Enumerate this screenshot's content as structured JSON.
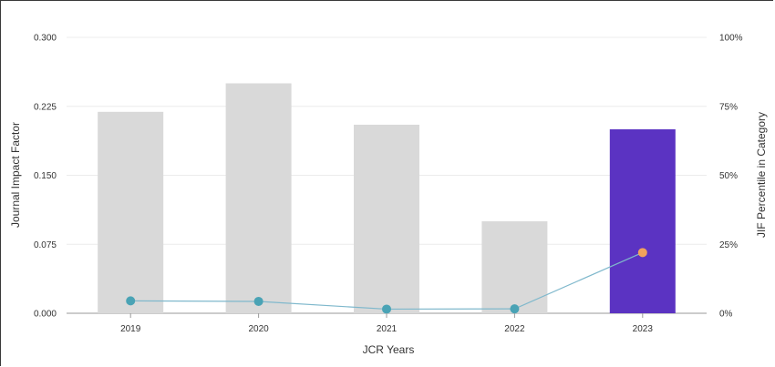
{
  "chart_data": {
    "type": "bar",
    "categories": [
      "2019",
      "2020",
      "2021",
      "2022",
      "2023"
    ],
    "series": [
      {
        "kind": "bar",
        "axis": "left",
        "values": [
          0.219,
          0.25,
          0.205,
          0.1,
          0.2
        ],
        "colors": [
          "#d9d9d9",
          "#d9d9d9",
          "#d9d9d9",
          "#d9d9d9",
          "#5b33c2"
        ]
      },
      {
        "kind": "line",
        "axis": "right",
        "values": [
          4.5,
          4.3,
          1.5,
          1.6,
          22
        ],
        "line_color": "#7fb8cc",
        "point_colors": [
          "#4aa3b5",
          "#4aa3b5",
          "#4aa3b5",
          "#4aa3b5",
          "#f2a25c"
        ]
      }
    ],
    "xlabel": "JCR Years",
    "ylabel": "Journal Impact Factor",
    "y2label": "JIF Percentile in Category",
    "ylim": [
      0,
      0.3
    ],
    "y2lim": [
      0,
      100
    ],
    "yticks": [
      "0.000",
      "0.075",
      "0.150",
      "0.225",
      "0.300"
    ],
    "y2ticks": [
      "0%",
      "25%",
      "50%",
      "75%",
      "100%"
    ],
    "grid": true,
    "legend": "none"
  }
}
